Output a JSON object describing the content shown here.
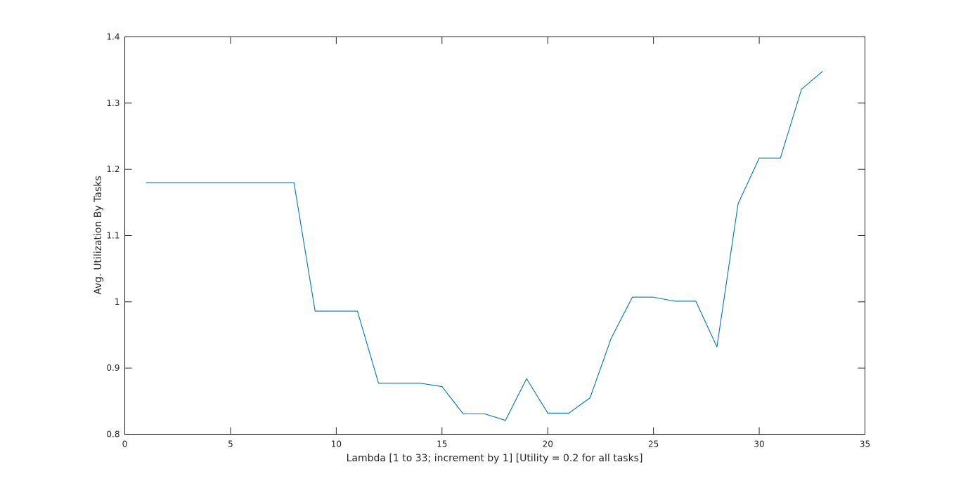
{
  "chart_data": {
    "type": "line",
    "title": "",
    "xlabel": "Lambda [1 to 33; increment by 1] [Utility = 0.2 for all tasks]",
    "ylabel": "Avg. Utilization By Tasks",
    "xlim": [
      0,
      35
    ],
    "ylim": [
      0.8,
      1.4
    ],
    "grid": false,
    "legend": "none",
    "line_color": "#0072bd",
    "xticks": [
      0,
      5,
      10,
      15,
      20,
      25,
      30,
      35
    ],
    "xtick_labels": [
      "0",
      "5",
      "10",
      "15",
      "20",
      "25",
      "30",
      "35"
    ],
    "yticks": [
      0.8,
      0.9,
      1.0,
      1.1,
      1.2,
      1.3,
      1.4
    ],
    "ytick_labels": [
      "0.8",
      "0.9",
      "1",
      "1.1",
      "1.2",
      "1.3",
      "1.4"
    ],
    "series": [
      {
        "x": [
          1,
          2,
          3,
          4,
          5,
          6,
          7,
          8,
          9,
          10,
          11,
          12,
          13,
          14,
          15,
          16,
          17,
          18,
          19,
          20,
          21,
          22,
          23,
          24,
          25,
          26,
          27,
          28,
          29,
          30,
          31,
          32,
          33
        ],
        "values": [
          1.18,
          1.18,
          1.18,
          1.18,
          1.18,
          1.18,
          1.18,
          1.18,
          0.986,
          0.986,
          0.986,
          0.877,
          0.877,
          0.877,
          0.872,
          0.831,
          0.831,
          0.821,
          0.884,
          0.832,
          0.832,
          0.855,
          0.945,
          1.007,
          1.007,
          1.001,
          1.001,
          0.932,
          1.148,
          1.217,
          1.217,
          1.321,
          1.348
        ]
      }
    ]
  }
}
